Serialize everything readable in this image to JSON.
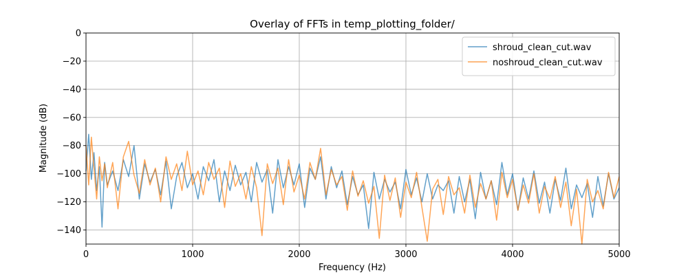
{
  "chart_data": {
    "type": "line",
    "title": "Overlay of FFTs in temp_plotting_folder/",
    "xlabel": "Frequency (Hz)",
    "ylabel": "Magnitude (dB)",
    "xlim": [
      0,
      5000
    ],
    "ylim": [
      -150,
      0
    ],
    "xticks": [
      0,
      1000,
      2000,
      3000,
      4000,
      5000
    ],
    "xtick_labels": [
      "0",
      "1000",
      "2000",
      "3000",
      "4000",
      "5000"
    ],
    "yticks": [
      0,
      -20,
      -40,
      -60,
      -80,
      -100,
      -120,
      -140
    ],
    "ytick_labels": [
      "0",
      "−20",
      "−40",
      "−60",
      "−80",
      "−100",
      "−120",
      "−140"
    ],
    "grid": true,
    "legend_position": "top-right",
    "series": [
      {
        "name": "shroud_clean_cut.wav",
        "color": "#1f77b4",
        "x": [
          0,
          25,
          50,
          75,
          100,
          125,
          150,
          175,
          200,
          250,
          300,
          350,
          400,
          450,
          500,
          550,
          600,
          650,
          700,
          750,
          800,
          850,
          900,
          950,
          1000,
          1050,
          1100,
          1150,
          1200,
          1250,
          1300,
          1350,
          1400,
          1450,
          1500,
          1550,
          1600,
          1650,
          1700,
          1750,
          1800,
          1850,
          1900,
          1950,
          2000,
          2050,
          2100,
          2150,
          2200,
          2250,
          2300,
          2350,
          2400,
          2450,
          2500,
          2550,
          2600,
          2650,
          2700,
          2750,
          2800,
          2850,
          2900,
          2950,
          3000,
          3050,
          3100,
          3150,
          3200,
          3250,
          3300,
          3350,
          3400,
          3450,
          3500,
          3550,
          3600,
          3650,
          3700,
          3750,
          3800,
          3850,
          3900,
          3950,
          4000,
          4050,
          4100,
          4150,
          4200,
          4250,
          4300,
          4350,
          4400,
          4450,
          4500,
          4550,
          4600,
          4650,
          4700,
          4750,
          4800,
          4850,
          4900,
          4950,
          5000
        ],
        "y": [
          -98,
          -72,
          -104,
          -85,
          -112,
          -95,
          -138,
          -92,
          -108,
          -98,
          -112,
          -90,
          -102,
          -80,
          -118,
          -93,
          -106,
          -97,
          -115,
          -91,
          -125,
          -102,
          -92,
          -110,
          -100,
          -118,
          -95,
          -105,
          -90,
          -120,
          -98,
          -112,
          -94,
          -108,
          -99,
          -120,
          -92,
          -106,
          -97,
          -128,
          -90,
          -110,
          -95,
          -108,
          -93,
          -124,
          -96,
          -104,
          -88,
          -118,
          -95,
          -110,
          -98,
          -122,
          -102,
          -115,
          -108,
          -139,
          -99,
          -118,
          -104,
          -113,
          -106,
          -125,
          -97,
          -115,
          -103,
          -120,
          -100,
          -118,
          -108,
          -112,
          -105,
          -128,
          -102,
          -120,
          -104,
          -132,
          -99,
          -118,
          -105,
          -122,
          -92,
          -115,
          -100,
          -126,
          -103,
          -118,
          -98,
          -121,
          -106,
          -128,
          -104,
          -119,
          -96,
          -125,
          -108,
          -117,
          -107,
          -131,
          -102,
          -123,
          -100,
          -118,
          -110
        ]
      },
      {
        "name": "noshroud_clean_cut.wav",
        "color": "#ff7f0e",
        "x": [
          0,
          25,
          50,
          75,
          100,
          125,
          150,
          175,
          200,
          250,
          300,
          350,
          400,
          450,
          500,
          550,
          600,
          650,
          700,
          750,
          800,
          850,
          900,
          950,
          1000,
          1050,
          1100,
          1150,
          1200,
          1250,
          1300,
          1350,
          1400,
          1450,
          1500,
          1550,
          1600,
          1650,
          1700,
          1750,
          1800,
          1850,
          1900,
          1950,
          2000,
          2050,
          2100,
          2150,
          2200,
          2250,
          2300,
          2350,
          2400,
          2450,
          2500,
          2550,
          2600,
          2650,
          2700,
          2750,
          2800,
          2850,
          2900,
          2950,
          3000,
          3050,
          3100,
          3150,
          3200,
          3250,
          3300,
          3350,
          3400,
          3450,
          3500,
          3550,
          3600,
          3650,
          3700,
          3750,
          3800,
          3850,
          3900,
          3950,
          4000,
          4050,
          4100,
          4150,
          4200,
          4250,
          4300,
          4350,
          4400,
          4450,
          4500,
          4550,
          4600,
          4650,
          4700,
          4750,
          4800,
          4850,
          4900,
          4950,
          5000
        ],
        "y": [
          -80,
          -108,
          -74,
          -96,
          -118,
          -88,
          -105,
          -93,
          -110,
          -92,
          -125,
          -88,
          -77,
          -101,
          -114,
          -90,
          -108,
          -96,
          -120,
          -88,
          -104,
          -93,
          -112,
          -84,
          -108,
          -98,
          -115,
          -92,
          -104,
          -96,
          -124,
          -91,
          -109,
          -100,
          -118,
          -95,
          -110,
          -144,
          -93,
          -107,
          -96,
          -122,
          -90,
          -113,
          -101,
          -118,
          -92,
          -104,
          -82,
          -115,
          -97,
          -108,
          -102,
          -126,
          -98,
          -116,
          -105,
          -121,
          -109,
          -146,
          -101,
          -119,
          -103,
          -131,
          -106,
          -117,
          -99,
          -124,
          -148,
          -111,
          -104,
          -129,
          -102,
          -115,
          -110,
          -128,
          -101,
          -124,
          -107,
          -118,
          -105,
          -133,
          -99,
          -117,
          -104,
          -126,
          -108,
          -121,
          -100,
          -128,
          -109,
          -118,
          -102,
          -124,
          -106,
          -137,
          -111,
          -150,
          -104,
          -120,
          -112,
          -125,
          -99,
          -117,
          -102
        ]
      }
    ]
  }
}
